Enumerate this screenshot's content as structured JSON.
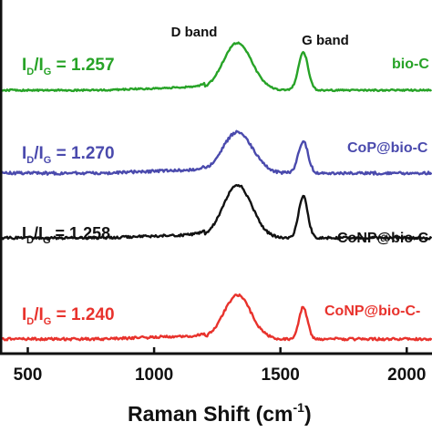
{
  "chart_data": {
    "type": "line",
    "xlabel_main": "Raman Shift (cm",
    "xlabel_sup": "-1",
    "xlabel_close": ")",
    "xlim": [
      390,
      2100
    ],
    "xticks": [
      500,
      1000,
      1500,
      2000
    ],
    "tick_labels": [
      "500",
      "1000",
      "1500",
      "2000"
    ],
    "annotations": [
      {
        "text": "D band",
        "x": 1300
      },
      {
        "text": "G band",
        "x": 1600
      }
    ],
    "series": [
      {
        "name": "bio-C",
        "color": "#27a327",
        "ratio_prefix": "I",
        "ratio_sub1": "D",
        "ratio_mid": "/I",
        "ratio_sub2": "G",
        "ratio_value": " = 1.257"
      },
      {
        "name": "CoP@bio-C",
        "color": "#4a4aad",
        "ratio_prefix": "I",
        "ratio_sub1": "D",
        "ratio_mid": "/I",
        "ratio_sub2": "G",
        "ratio_value": " = 1.270"
      },
      {
        "name": "CoNP@bio-C",
        "color": "#111111",
        "ratio_prefix": "I",
        "ratio_sub1": "D",
        "ratio_mid": "/I",
        "ratio_sub2": "G",
        "ratio_value": " = 1.258"
      },
      {
        "name": "CoNP@bio-C-",
        "color": "#e8322c",
        "ratio_prefix": "I",
        "ratio_sub1": "D",
        "ratio_mid": "/I",
        "ratio_sub2": "G",
        "ratio_value": " = 1.240"
      }
    ],
    "peaks": {
      "D_center": 1330,
      "G_center": 1590
    },
    "grid": false
  }
}
